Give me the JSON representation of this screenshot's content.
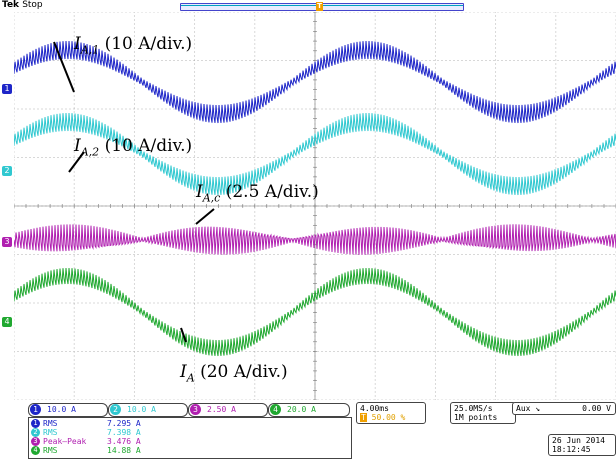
{
  "header": {
    "brand": "Tek",
    "state": "Stop",
    "trigger_marker": "T"
  },
  "channels": [
    {
      "id": "1",
      "color": "#1e26c8",
      "scale": "10.0 A"
    },
    {
      "id": "2",
      "color": "#30c8d0",
      "scale": "10.0 A"
    },
    {
      "id": "3",
      "color": "#b020b0",
      "scale": "2.50 A"
    },
    {
      "id": "4",
      "color": "#20a830",
      "scale": "20.0 A"
    }
  ],
  "annotations": {
    "ia1": {
      "symbol": "I",
      "sub": "A,1",
      "scale": "(10 A/div.)"
    },
    "ia2": {
      "symbol": "I",
      "sub": "A,2",
      "scale": "(10 A/div.)"
    },
    "iac": {
      "symbol": "I",
      "sub": "A,c",
      "scale": "(2.5 A/div.)"
    },
    "ia": {
      "symbol": "I",
      "sub": "A",
      "scale": "(20 A/div.)"
    }
  },
  "measurements": [
    {
      "ch": "1",
      "name": "RMS",
      "value": "7.295 A"
    },
    {
      "ch": "2",
      "name": "RMS",
      "value": "7.398 A"
    },
    {
      "ch": "3",
      "name": "Peak–Peak",
      "value": "3.476 A"
    },
    {
      "ch": "4",
      "name": "RMS",
      "value": "14.88 A"
    }
  ],
  "timebase": {
    "scale": "4.00ms",
    "trigger_position": "50.00 %"
  },
  "acquisition": {
    "rate": "25.0MS/s",
    "points": "1M points"
  },
  "trigger": {
    "source": "Aux",
    "slope": "↘",
    "level": "0.00 V"
  },
  "datetime": {
    "date": "26 Jun 2014",
    "time": "18:12:45"
  }
}
